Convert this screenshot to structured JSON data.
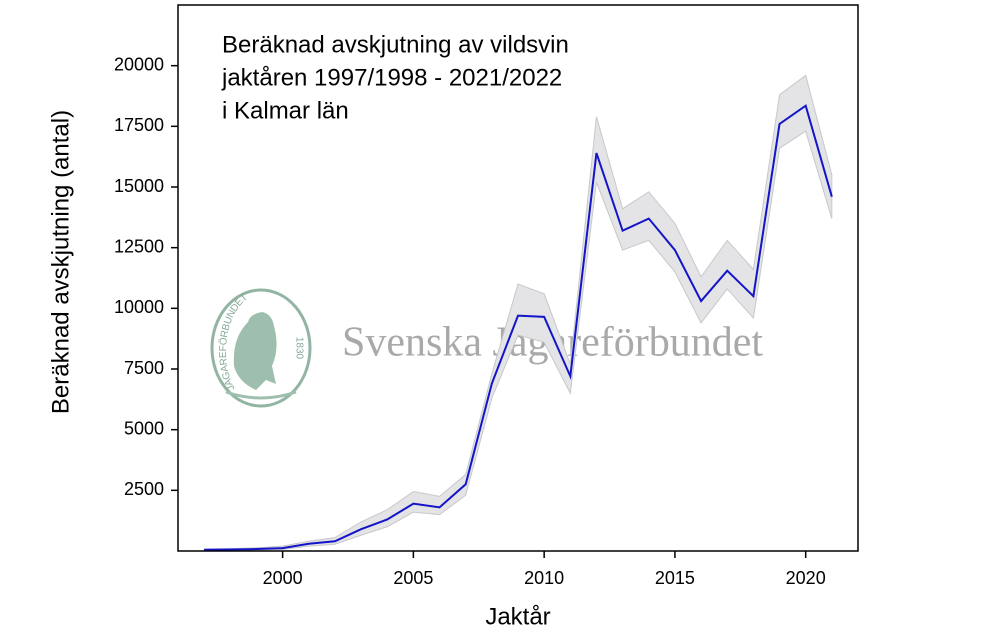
{
  "chart_data": {
    "type": "line",
    "title_lines": [
      "Beräknad avskjutning av vildsvin",
      "jaktåren 1997/1998 - 2021/2022",
      "i Kalmar län"
    ],
    "xlabel": "Jaktår",
    "ylabel": "Beräknad avskjutning (antal)",
    "watermark": "Svenska Jägareförbundet",
    "logo_text": "JÄGAREFÖRBUNDET",
    "logo_year": "1830",
    "x": [
      1997,
      1998,
      1999,
      2000,
      2001,
      2002,
      2003,
      2004,
      2005,
      2006,
      2007,
      2008,
      2009,
      2010,
      2011,
      2012,
      2013,
      2014,
      2015,
      2016,
      2017,
      2018,
      2019,
      2020,
      2021
    ],
    "series": [
      {
        "color": "#1414c8",
        "values": [
          50,
          60,
          80,
          120,
          300,
          400,
          900,
          1300,
          1950,
          1800,
          2750,
          6900,
          9700,
          9650,
          7200,
          16400,
          13200,
          13700,
          12400,
          10300,
          11550,
          10500,
          17600,
          18350,
          14600
        ]
      }
    ],
    "band": {
      "color": "#e4e4e6",
      "upper": [
        80,
        100,
        130,
        200,
        400,
        550,
        1200,
        1700,
        2450,
        2250,
        3150,
        7300,
        11000,
        10600,
        7700,
        17900,
        14100,
        14800,
        13500,
        11300,
        12800,
        11600,
        18800,
        19600,
        15500
      ],
      "lower": [
        20,
        30,
        40,
        60,
        200,
        280,
        650,
        1000,
        1600,
        1500,
        2300,
        6300,
        8900,
        8600,
        6500,
        15200,
        12400,
        12800,
        11500,
        9400,
        10800,
        9600,
        16600,
        17300,
        13700
      ]
    },
    "xlim": [
      1996,
      2022
    ],
    "ylim": [
      0,
      22500
    ],
    "xticks": [
      2000,
      2005,
      2010,
      2015,
      2020
    ],
    "yticks": [
      2500,
      5000,
      7500,
      10000,
      12500,
      15000,
      17500,
      20000
    ]
  }
}
